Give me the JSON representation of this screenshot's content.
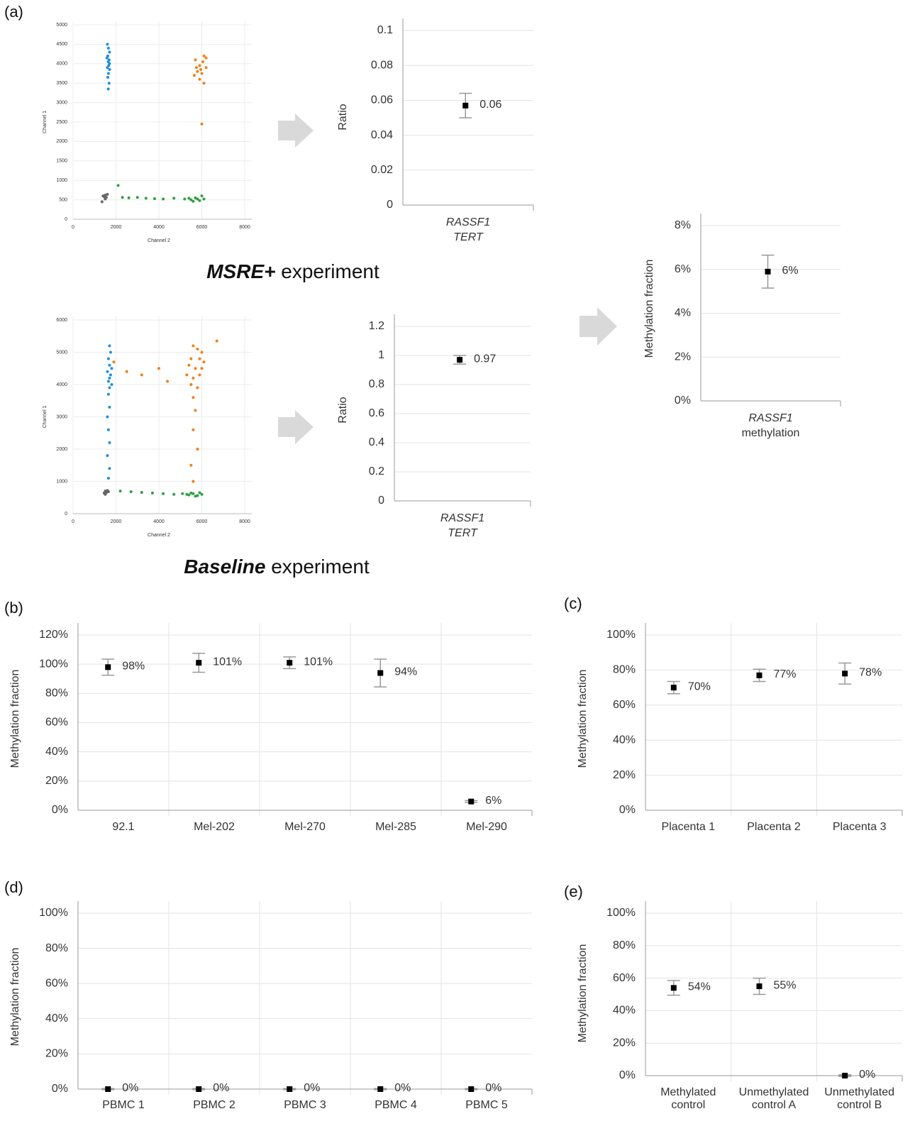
{
  "panel_labels": [
    "(a)",
    "(b)",
    "(c)",
    "(d)",
    "(e)"
  ],
  "captions": [
    [
      "MSRE+",
      "experiment"
    ],
    [
      "Baseline",
      "experiment"
    ]
  ],
  "chart_data": [
    {
      "type": "scatter",
      "x_label": "Channel 2",
      "y_label": "Channel 1",
      "xlim": [
        0,
        8000
      ],
      "xticks": [
        0,
        2000,
        4000,
        6000,
        8000
      ],
      "ylim": [
        0,
        5000
      ],
      "yticks": [
        0,
        500,
        1000,
        1500,
        2000,
        2500,
        3000,
        3500,
        4000,
        4500,
        5000
      ],
      "grid": true,
      "series": [
        {
          "color": "#1f8fe0",
          "x": [
            1600,
            1650,
            1700,
            1620,
            1680,
            1640,
            1660,
            1600,
            1700,
            1650,
            1620,
            1680,
            1640,
            1700,
            1580
          ],
          "y": [
            4500,
            4400,
            4300,
            4200,
            4100,
            4050,
            3950,
            3900,
            3850,
            3750,
            3650,
            3500,
            3350,
            4000,
            4150
          ]
        },
        {
          "color": "#f07f1a",
          "x": [
            5700,
            5900,
            6100,
            5800,
            6000,
            6200,
            5650,
            5900,
            6100,
            5950,
            6050,
            6000,
            6200,
            5750
          ],
          "y": [
            4100,
            3950,
            4200,
            3800,
            3750,
            3900,
            3700,
            3600,
            3500,
            3850,
            4050,
            2450,
            4150,
            3900
          ]
        },
        {
          "color": "#666666",
          "x": [
            1400,
            1500,
            1550,
            1450,
            1600,
            1500,
            1350
          ],
          "y": [
            600,
            620,
            560,
            580,
            640,
            520,
            450
          ]
        },
        {
          "color": "#2ea043",
          "x": [
            2100,
            2300,
            2600,
            3000,
            3400,
            3800,
            4200,
            4700,
            5200,
            5500,
            5700,
            5900,
            6100,
            5600,
            6000,
            5400,
            5800
          ],
          "y": [
            870,
            560,
            550,
            560,
            540,
            530,
            520,
            540,
            520,
            500,
            550,
            480,
            520,
            460,
            600,
            540,
            520
          ]
        }
      ]
    },
    {
      "type": "errorbar",
      "y_label": "Ratio",
      "categories": [
        [
          "RASSF1",
          "TERT"
        ]
      ],
      "values": [
        0.057
      ],
      "errors": [
        0.007
      ],
      "value_labels": [
        "0.06"
      ],
      "color": "#000000",
      "ylim": [
        0,
        0.1
      ],
      "yticks": [
        0,
        0.02,
        0.04,
        0.06,
        0.08,
        0.1
      ],
      "grid": "y"
    },
    {
      "type": "scatter",
      "x_label": "Channel 2",
      "y_label": "Channel 1",
      "xlim": [
        0,
        8000
      ],
      "xticks": [
        0,
        2000,
        4000,
        6000,
        8000
      ],
      "ylim": [
        0,
        6000
      ],
      "yticks": [
        0,
        1000,
        2000,
        3000,
        4000,
        5000,
        6000
      ],
      "grid": true,
      "series": [
        {
          "color": "#1f8fe0",
          "x": [
            1700,
            1750,
            1650,
            1700,
            1800,
            1600,
            1750,
            1700,
            1650,
            1800,
            1700,
            1650,
            1700,
            1600,
            1650,
            1700,
            1600,
            1700,
            1650
          ],
          "y": [
            5200,
            5000,
            4800,
            4600,
            4500,
            4400,
            4300,
            4200,
            4100,
            4000,
            3900,
            3700,
            3300,
            3000,
            2600,
            2200,
            1800,
            1400,
            1100
          ]
        },
        {
          "color": "#f07f1a",
          "x": [
            5600,
            5800,
            6000,
            5500,
            5900,
            6100,
            5400,
            5700,
            6000,
            5300,
            5600,
            5900,
            5500,
            5800,
            5600,
            2500,
            3200,
            4000,
            4400,
            5700,
            5600,
            5800,
            5500,
            5600,
            6700,
            1900
          ],
          "y": [
            5200,
            5100,
            5000,
            4800,
            4800,
            4700,
            4600,
            4500,
            4500,
            4300,
            4200,
            4300,
            4000,
            3900,
            3600,
            4400,
            4300,
            4500,
            4100,
            3200,
            2600,
            2000,
            1500,
            1000,
            5350,
            4700
          ]
        },
        {
          "color": "#666666",
          "x": [
            1500,
            1550,
            1600,
            1450,
            1650,
            1500
          ],
          "y": [
            700,
            650,
            720,
            640,
            680,
            600
          ]
        },
        {
          "color": "#2ea043",
          "x": [
            2200,
            2700,
            3200,
            3700,
            4200,
            4700,
            5100,
            5400,
            5600,
            5800,
            6000,
            5500,
            5700,
            5300,
            5900
          ],
          "y": [
            700,
            680,
            660,
            640,
            620,
            600,
            620,
            580,
            620,
            560,
            600,
            640,
            540,
            600,
            650
          ]
        }
      ]
    },
    {
      "type": "errorbar",
      "y_label": "Ratio",
      "categories": [
        [
          "RASSF1",
          "TERT"
        ]
      ],
      "values": [
        0.97
      ],
      "errors": [
        0.03
      ],
      "value_labels": [
        "0.97"
      ],
      "color": "#000000",
      "ylim": [
        0,
        1.2
      ],
      "yticks": [
        0,
        0.2,
        0.4,
        0.6,
        0.8,
        1,
        1.2
      ],
      "grid": "y"
    },
    {
      "type": "errorbar",
      "y_label": "Methylation fraction",
      "categories": [
        [
          "RASSF1",
          "methylation"
        ]
      ],
      "values": [
        5.9
      ],
      "errors": [
        0.75
      ],
      "value_labels": [
        "6%"
      ],
      "color": "#000000",
      "ylim": [
        0,
        8
      ],
      "yticks": [
        {
          "value": 0,
          "label": "0%"
        },
        {
          "value": 2,
          "label": "2%"
        },
        {
          "value": 4,
          "label": "4%"
        },
        {
          "value": 6,
          "label": "6%"
        },
        {
          "value": 8,
          "label": "8%"
        }
      ],
      "grid": "y"
    },
    {
      "type": "errorbar",
      "y_label": "Methylation fraction",
      "categories": [
        "92.1",
        "Mel-202",
        "Mel-270",
        "Mel-285",
        "Mel-290"
      ],
      "values": [
        98,
        101,
        101,
        94,
        6
      ],
      "errors": [
        5.5,
        6.5,
        4,
        9.5,
        0.6
      ],
      "value_labels": [
        "98%",
        "101%",
        "101%",
        "94%",
        "6%"
      ],
      "color": "#000000",
      "ylim": [
        0,
        120
      ],
      "yticks": [
        {
          "value": 0,
          "label": "0%"
        },
        {
          "value": 20,
          "label": "20%"
        },
        {
          "value": 40,
          "label": "40%"
        },
        {
          "value": 60,
          "label": "60%"
        },
        {
          "value": 80,
          "label": "80%"
        },
        {
          "value": 100,
          "label": "100%"
        },
        {
          "value": 120,
          "label": "120%"
        }
      ],
      "grid": "both"
    },
    {
      "type": "errorbar",
      "y_label": "Methylation fraction",
      "categories": [
        "Placenta 1",
        "Placenta 2",
        "Placenta 3"
      ],
      "values": [
        70,
        77,
        78
      ],
      "errors": [
        3.5,
        3.5,
        6
      ],
      "value_labels": [
        "70%",
        "77%",
        "78%"
      ],
      "color": "#000000",
      "ylim": [
        0,
        100
      ],
      "yticks": [
        {
          "value": 0,
          "label": "0%"
        },
        {
          "value": 20,
          "label": "20%"
        },
        {
          "value": 40,
          "label": "40%"
        },
        {
          "value": 60,
          "label": "60%"
        },
        {
          "value": 80,
          "label": "80%"
        },
        {
          "value": 100,
          "label": "100%"
        }
      ],
      "grid": "both"
    },
    {
      "type": "errorbar",
      "y_label": "Methylation fraction",
      "categories": [
        "PBMC 1",
        "PBMC 2",
        "PBMC 3",
        "PBMC 4",
        "PBMC 5"
      ],
      "values": [
        0,
        0,
        0,
        0,
        0
      ],
      "errors": [
        0.3,
        0.3,
        0.3,
        0.3,
        0.3
      ],
      "value_labels": [
        "0%",
        "0%",
        "0%",
        "0%",
        "0%"
      ],
      "color": "#000000",
      "ylim": [
        0,
        100
      ],
      "yticks": [
        {
          "value": 0,
          "label": "0%"
        },
        {
          "value": 20,
          "label": "20%"
        },
        {
          "value": 40,
          "label": "40%"
        },
        {
          "value": 60,
          "label": "60%"
        },
        {
          "value": 80,
          "label": "80%"
        },
        {
          "value": 100,
          "label": "100%"
        }
      ],
      "grid": "both"
    },
    {
      "type": "errorbar",
      "y_label": "Methylation fraction",
      "categories": [
        [
          "Methylated",
          "control"
        ],
        [
          "Unmethylated",
          "control A"
        ],
        [
          "Unmethylated",
          "control B"
        ]
      ],
      "values": [
        54,
        55,
        0
      ],
      "errors": [
        4.5,
        5,
        0.5
      ],
      "value_labels": [
        "54%",
        "55%",
        "0%"
      ],
      "color": "#000000",
      "ylim": [
        0,
        100
      ],
      "yticks": [
        {
          "value": 0,
          "label": "0%"
        },
        {
          "value": 20,
          "label": "20%"
        },
        {
          "value": 40,
          "label": "40%"
        },
        {
          "value": 60,
          "label": "60%"
        },
        {
          "value": 80,
          "label": "80%"
        },
        {
          "value": 100,
          "label": "100%"
        }
      ],
      "grid": "both"
    }
  ]
}
